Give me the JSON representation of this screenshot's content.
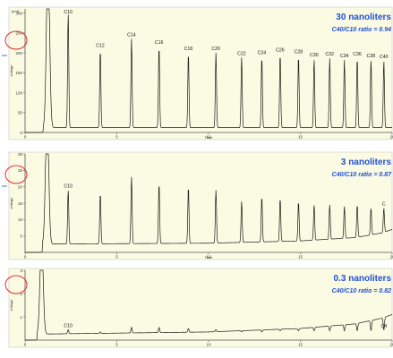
{
  "colors": {
    "panel_bg": "#fbfbe4",
    "trace": "#1a1a1a",
    "title": "#1f4fd8",
    "ring": "#e0302a",
    "axis": "#555555"
  },
  "chart_data": [
    {
      "type": "line",
      "title": "30 nanoliters",
      "subtitle": "C40/C10 ratio = 0.94",
      "xlabel": "Time",
      "ylabel": "voltage",
      "unit_label": "[mV]",
      "xlim": [
        0,
        20
      ],
      "ylim": [
        0,
        310
      ],
      "xticks": [
        "0",
        "5",
        "10",
        "15",
        "20"
      ],
      "yticks": [
        "0",
        "50",
        "100",
        "150",
        "200",
        "250",
        "300"
      ],
      "baseline": 12,
      "solvent_time": 1.25,
      "peaks": [
        {
          "label": "C10",
          "time": 2.35,
          "height": 300
        },
        {
          "label": "C12",
          "time": 4.1,
          "height": 208
        },
        {
          "label": "C14",
          "time": 5.8,
          "height": 235
        },
        {
          "label": "C16",
          "time": 7.3,
          "height": 216
        },
        {
          "label": "C18",
          "time": 8.9,
          "height": 200
        },
        {
          "label": "C20",
          "time": 10.4,
          "height": 200
        },
        {
          "label": "C22",
          "time": 11.8,
          "height": 188
        },
        {
          "label": "C24",
          "time": 12.9,
          "height": 190
        },
        {
          "label": "C26",
          "time": 13.9,
          "height": 197
        },
        {
          "label": "C28",
          "time": 14.9,
          "height": 192
        },
        {
          "label": "C30",
          "time": 15.75,
          "height": 184
        },
        {
          "label": "C32",
          "time": 16.6,
          "height": 186
        },
        {
          "label": "C34",
          "time": 17.4,
          "height": 182
        },
        {
          "label": "C36",
          "time": 18.1,
          "height": 187
        },
        {
          "label": "C38",
          "time": 18.85,
          "height": 182
        },
        {
          "label": "C40",
          "time": 19.55,
          "height": 180
        }
      ]
    },
    {
      "type": "line",
      "title": "3 nanoliters",
      "subtitle": "C40/C10 ratio = 0.87",
      "xlabel": "Time",
      "ylabel": "voltage",
      "unit_label": "",
      "xlim": [
        0,
        20
      ],
      "ylim": [
        0,
        30
      ],
      "xticks": [
        "0",
        "5",
        "10",
        "15",
        "20"
      ],
      "yticks": [
        "5",
        "10",
        "15",
        "20",
        "25",
        "30"
      ],
      "baseline": 2.5,
      "solvent_time": 1.2,
      "drift": [
        [
          0,
          2.5
        ],
        [
          10,
          2.8
        ],
        [
          15,
          3.5
        ],
        [
          18,
          4.5
        ],
        [
          19.5,
          6
        ],
        [
          20,
          7
        ]
      ],
      "peaks": [
        {
          "label": "C10",
          "time": 2.35,
          "height": 19
        },
        {
          "label": "",
          "time": 4.1,
          "height": 18
        },
        {
          "label": "",
          "time": 5.8,
          "height": 23
        },
        {
          "label": "",
          "time": 7.3,
          "height": 21
        },
        {
          "label": "",
          "time": 8.9,
          "height": 20
        },
        {
          "label": "",
          "time": 10.4,
          "height": 19
        },
        {
          "label": "",
          "time": 11.8,
          "height": 15.5
        },
        {
          "label": "",
          "time": 12.9,
          "height": 17
        },
        {
          "label": "",
          "time": 13.9,
          "height": 16.5
        },
        {
          "label": "",
          "time": 14.9,
          "height": 15.5
        },
        {
          "label": "",
          "time": 15.75,
          "height": 14.5
        },
        {
          "label": "",
          "time": 16.6,
          "height": 14.5
        },
        {
          "label": "",
          "time": 17.4,
          "height": 14
        },
        {
          "label": "",
          "time": 18.1,
          "height": 14.5
        },
        {
          "label": "",
          "time": 18.85,
          "height": 13.5
        },
        {
          "label": "C",
          "time": 19.55,
          "height": 13.5
        }
      ]
    },
    {
      "type": "line",
      "title": "0.3 nanoliters",
      "subtitle": "C40/C10 ratio = 0.82",
      "xlabel": "",
      "ylabel": "voltage",
      "unit_label": "",
      "xlim": [
        0,
        20
      ],
      "ylim": [
        0,
        3
      ],
      "xticks": [
        "0",
        "5",
        "10",
        "15",
        "20"
      ],
      "yticks": [
        "1",
        "2",
        "3"
      ],
      "baseline": 0.25,
      "solvent_time": 0.9,
      "drift": [
        [
          0,
          0.25
        ],
        [
          10,
          0.35
        ],
        [
          15,
          0.5
        ],
        [
          18,
          0.7
        ],
        [
          19.5,
          0.95
        ],
        [
          20,
          1.1
        ]
      ],
      "peaks": [
        {
          "label": "C10",
          "time": 2.35,
          "height": 0.45
        },
        {
          "label": "",
          "time": 4.1,
          "height": 0.35
        },
        {
          "label": "",
          "time": 5.8,
          "height": 0.55
        },
        {
          "label": "",
          "time": 7.3,
          "height": 0.55
        },
        {
          "label": "",
          "time": 8.9,
          "height": 0.5
        },
        {
          "label": "",
          "time": 10.4,
          "height": 0.45
        },
        {
          "label": "",
          "time": 11.8,
          "height": 0.35
        },
        {
          "label": "",
          "time": 12.9,
          "height": 0.35
        },
        {
          "label": "",
          "time": 13.9,
          "height": 0.4
        },
        {
          "label": "",
          "time": 14.9,
          "height": 0.4
        },
        {
          "label": "",
          "time": 15.75,
          "height": 0.4
        },
        {
          "label": "",
          "time": 16.6,
          "height": 0.4
        },
        {
          "label": "",
          "time": 17.4,
          "height": 0.4
        },
        {
          "label": "",
          "time": 18.1,
          "height": 0.4
        },
        {
          "label": "",
          "time": 18.85,
          "height": 0.4
        },
        {
          "label": "C4",
          "time": 19.55,
          "height": 0.42
        }
      ]
    }
  ]
}
